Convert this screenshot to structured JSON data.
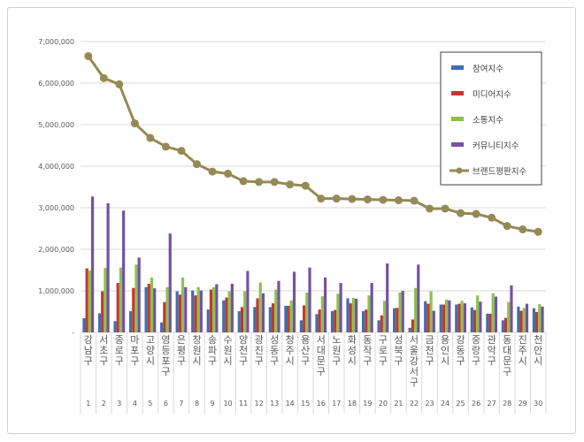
{
  "chart_data": {
    "type": "bar+line",
    "title": "",
    "xlabel": "",
    "ylabel": "",
    "ylim": [
      0,
      7000000
    ],
    "yticks": [
      "-",
      "1,000,000",
      "2,000,000",
      "3,000,000",
      "4,000,000",
      "5,000,000",
      "6,000,000",
      "7,000,000"
    ],
    "grid": true,
    "legend_position": "top-right",
    "categories": [
      "강남구",
      "서초구",
      "종로구",
      "마포구",
      "고양시",
      "영등포구",
      "은평구",
      "창원시",
      "송파구",
      "수원시",
      "양천구",
      "광진구",
      "성동구",
      "청주시",
      "용산구",
      "서대문구",
      "노원구",
      "화성시",
      "동작구",
      "구로구",
      "성북구",
      "서울 강서구",
      "금천구",
      "용인시",
      "강동구",
      "중랑구",
      "관악구",
      "동대문구",
      "진주시",
      "천안시"
    ],
    "ranks": [
      "1",
      "2",
      "3",
      "4",
      "5",
      "6",
      "7",
      "8",
      "9",
      "10",
      "11",
      "12",
      "13",
      "14",
      "15",
      "16",
      "17",
      "18",
      "19",
      "20",
      "21",
      "22",
      "23",
      "24",
      "25",
      "26",
      "27",
      "28",
      "29",
      "30"
    ],
    "series": [
      {
        "name": "참여지수",
        "type": "bar",
        "color": "#3f6eb0",
        "values": [
          340000,
          460000,
          270000,
          510000,
          1090000,
          240000,
          990000,
          1010000,
          550000,
          770000,
          510000,
          610000,
          610000,
          640000,
          290000,
          440000,
          510000,
          820000,
          510000,
          290000,
          580000,
          110000,
          750000,
          670000,
          670000,
          600000,
          450000,
          290000,
          620000,
          580000
        ]
      },
      {
        "name": "미디어지수",
        "type": "bar",
        "color": "#c0392f",
        "values": [
          1540000,
          990000,
          1190000,
          1070000,
          1170000,
          730000,
          910000,
          890000,
          1030000,
          840000,
          610000,
          820000,
          700000,
          640000,
          650000,
          550000,
          540000,
          700000,
          550000,
          410000,
          590000,
          310000,
          690000,
          670000,
          690000,
          540000,
          450000,
          350000,
          520000,
          490000
        ]
      },
      {
        "name": "소통지수",
        "type": "bar",
        "color": "#8fbf4f",
        "values": [
          1490000,
          1550000,
          1560000,
          1630000,
          1320000,
          1090000,
          1320000,
          1090000,
          1090000,
          990000,
          990000,
          1200000,
          1030000,
          770000,
          960000,
          870000,
          930000,
          830000,
          890000,
          760000,
          960000,
          1070000,
          990000,
          790000,
          760000,
          890000,
          940000,
          730000,
          590000,
          680000
        ]
      },
      {
        "name": "커뮤니티지수",
        "type": "bar",
        "color": "#7352a3",
        "values": [
          3270000,
          3110000,
          2930000,
          1800000,
          1060000,
          2380000,
          1090000,
          1010000,
          1160000,
          1170000,
          1480000,
          940000,
          1240000,
          1460000,
          1560000,
          1320000,
          1190000,
          810000,
          1190000,
          1660000,
          1000000,
          1630000,
          520000,
          770000,
          700000,
          740000,
          860000,
          1130000,
          690000,
          620000
        ]
      },
      {
        "name": "브랜드평판지수",
        "type": "line",
        "color": "#948a54",
        "values": [
          6650000,
          6120000,
          5970000,
          5030000,
          4680000,
          4470000,
          4370000,
          4050000,
          3870000,
          3820000,
          3640000,
          3620000,
          3620000,
          3560000,
          3530000,
          3220000,
          3220000,
          3210000,
          3200000,
          3190000,
          3180000,
          3170000,
          2980000,
          2980000,
          2870000,
          2850000,
          2760000,
          2560000,
          2480000,
          2420000
        ]
      }
    ]
  }
}
